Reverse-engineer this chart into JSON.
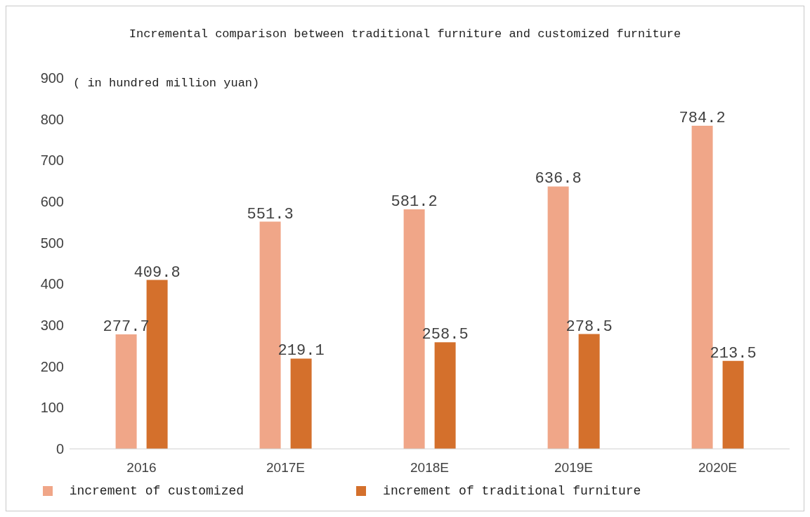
{
  "chart_data": {
    "type": "bar",
    "title": "Incremental comparison between traditional furniture and customized furniture",
    "ylabel": "( in hundred million yuan)",
    "categories": [
      "2016",
      "2017E",
      "2018E",
      "2019E",
      "2020E"
    ],
    "series": [
      {
        "name": "increment of customized",
        "color": "#f0a688",
        "values": [
          277.7,
          551.3,
          581.2,
          636.8,
          784.2
        ]
      },
      {
        "name": "increment of traditional furniture",
        "color": "#d4702c",
        "values": [
          409.8,
          219.1,
          258.5,
          278.5,
          213.5
        ]
      }
    ],
    "ylim": [
      0,
      900
    ],
    "yticks": [
      0,
      100,
      200,
      300,
      400,
      500,
      600,
      700,
      800,
      900
    ],
    "grid": false,
    "legend": "bottom",
    "data_labels": true
  }
}
